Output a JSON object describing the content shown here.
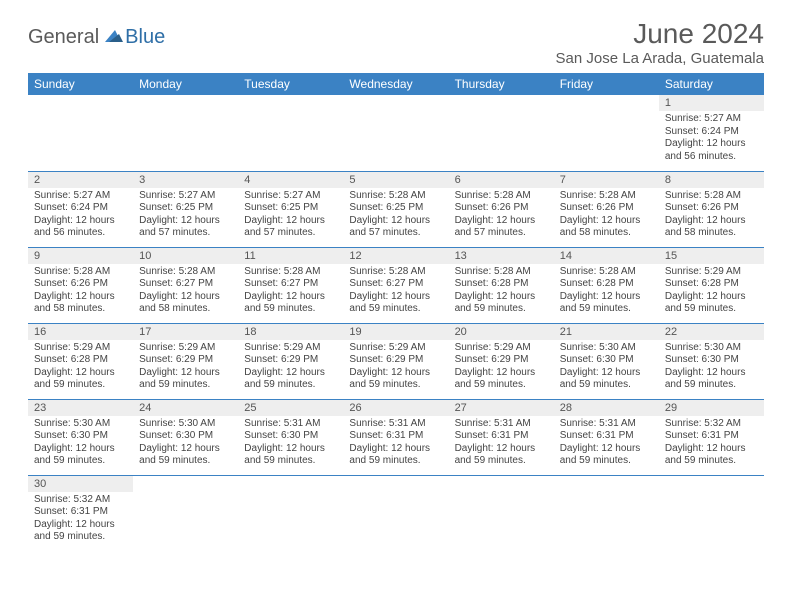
{
  "brand": {
    "part1": "General",
    "part2": "Blue",
    "color_general": "#5a5a5a",
    "color_blue": "#2f6fa7",
    "sail_color": "#3b82c4"
  },
  "title": "June 2024",
  "location": "San Jose La Arada, Guatemala",
  "header_bg": "#3b82c4",
  "header_text_color": "#ffffff",
  "daynum_bg": "#eeeeee",
  "row_border_color": "#3b82c4",
  "weekdays": [
    "Sunday",
    "Monday",
    "Tuesday",
    "Wednesday",
    "Thursday",
    "Friday",
    "Saturday"
  ],
  "cells": [
    [
      null,
      null,
      null,
      null,
      null,
      null,
      {
        "n": "1",
        "sunrise": "Sunrise: 5:27 AM",
        "sunset": "Sunset: 6:24 PM",
        "daylight": "Daylight: 12 hours and 56 minutes."
      }
    ],
    [
      {
        "n": "2",
        "sunrise": "Sunrise: 5:27 AM",
        "sunset": "Sunset: 6:24 PM",
        "daylight": "Daylight: 12 hours and 56 minutes."
      },
      {
        "n": "3",
        "sunrise": "Sunrise: 5:27 AM",
        "sunset": "Sunset: 6:25 PM",
        "daylight": "Daylight: 12 hours and 57 minutes."
      },
      {
        "n": "4",
        "sunrise": "Sunrise: 5:27 AM",
        "sunset": "Sunset: 6:25 PM",
        "daylight": "Daylight: 12 hours and 57 minutes."
      },
      {
        "n": "5",
        "sunrise": "Sunrise: 5:28 AM",
        "sunset": "Sunset: 6:25 PM",
        "daylight": "Daylight: 12 hours and 57 minutes."
      },
      {
        "n": "6",
        "sunrise": "Sunrise: 5:28 AM",
        "sunset": "Sunset: 6:26 PM",
        "daylight": "Daylight: 12 hours and 57 minutes."
      },
      {
        "n": "7",
        "sunrise": "Sunrise: 5:28 AM",
        "sunset": "Sunset: 6:26 PM",
        "daylight": "Daylight: 12 hours and 58 minutes."
      },
      {
        "n": "8",
        "sunrise": "Sunrise: 5:28 AM",
        "sunset": "Sunset: 6:26 PM",
        "daylight": "Daylight: 12 hours and 58 minutes."
      }
    ],
    [
      {
        "n": "9",
        "sunrise": "Sunrise: 5:28 AM",
        "sunset": "Sunset: 6:26 PM",
        "daylight": "Daylight: 12 hours and 58 minutes."
      },
      {
        "n": "10",
        "sunrise": "Sunrise: 5:28 AM",
        "sunset": "Sunset: 6:27 PM",
        "daylight": "Daylight: 12 hours and 58 minutes."
      },
      {
        "n": "11",
        "sunrise": "Sunrise: 5:28 AM",
        "sunset": "Sunset: 6:27 PM",
        "daylight": "Daylight: 12 hours and 59 minutes."
      },
      {
        "n": "12",
        "sunrise": "Sunrise: 5:28 AM",
        "sunset": "Sunset: 6:27 PM",
        "daylight": "Daylight: 12 hours and 59 minutes."
      },
      {
        "n": "13",
        "sunrise": "Sunrise: 5:28 AM",
        "sunset": "Sunset: 6:28 PM",
        "daylight": "Daylight: 12 hours and 59 minutes."
      },
      {
        "n": "14",
        "sunrise": "Sunrise: 5:28 AM",
        "sunset": "Sunset: 6:28 PM",
        "daylight": "Daylight: 12 hours and 59 minutes."
      },
      {
        "n": "15",
        "sunrise": "Sunrise: 5:29 AM",
        "sunset": "Sunset: 6:28 PM",
        "daylight": "Daylight: 12 hours and 59 minutes."
      }
    ],
    [
      {
        "n": "16",
        "sunrise": "Sunrise: 5:29 AM",
        "sunset": "Sunset: 6:28 PM",
        "daylight": "Daylight: 12 hours and 59 minutes."
      },
      {
        "n": "17",
        "sunrise": "Sunrise: 5:29 AM",
        "sunset": "Sunset: 6:29 PM",
        "daylight": "Daylight: 12 hours and 59 minutes."
      },
      {
        "n": "18",
        "sunrise": "Sunrise: 5:29 AM",
        "sunset": "Sunset: 6:29 PM",
        "daylight": "Daylight: 12 hours and 59 minutes."
      },
      {
        "n": "19",
        "sunrise": "Sunrise: 5:29 AM",
        "sunset": "Sunset: 6:29 PM",
        "daylight": "Daylight: 12 hours and 59 minutes."
      },
      {
        "n": "20",
        "sunrise": "Sunrise: 5:29 AM",
        "sunset": "Sunset: 6:29 PM",
        "daylight": "Daylight: 12 hours and 59 minutes."
      },
      {
        "n": "21",
        "sunrise": "Sunrise: 5:30 AM",
        "sunset": "Sunset: 6:30 PM",
        "daylight": "Daylight: 12 hours and 59 minutes."
      },
      {
        "n": "22",
        "sunrise": "Sunrise: 5:30 AM",
        "sunset": "Sunset: 6:30 PM",
        "daylight": "Daylight: 12 hours and 59 minutes."
      }
    ],
    [
      {
        "n": "23",
        "sunrise": "Sunrise: 5:30 AM",
        "sunset": "Sunset: 6:30 PM",
        "daylight": "Daylight: 12 hours and 59 minutes."
      },
      {
        "n": "24",
        "sunrise": "Sunrise: 5:30 AM",
        "sunset": "Sunset: 6:30 PM",
        "daylight": "Daylight: 12 hours and 59 minutes."
      },
      {
        "n": "25",
        "sunrise": "Sunrise: 5:31 AM",
        "sunset": "Sunset: 6:30 PM",
        "daylight": "Daylight: 12 hours and 59 minutes."
      },
      {
        "n": "26",
        "sunrise": "Sunrise: 5:31 AM",
        "sunset": "Sunset: 6:31 PM",
        "daylight": "Daylight: 12 hours and 59 minutes."
      },
      {
        "n": "27",
        "sunrise": "Sunrise: 5:31 AM",
        "sunset": "Sunset: 6:31 PM",
        "daylight": "Daylight: 12 hours and 59 minutes."
      },
      {
        "n": "28",
        "sunrise": "Sunrise: 5:31 AM",
        "sunset": "Sunset: 6:31 PM",
        "daylight": "Daylight: 12 hours and 59 minutes."
      },
      {
        "n": "29",
        "sunrise": "Sunrise: 5:32 AM",
        "sunset": "Sunset: 6:31 PM",
        "daylight": "Daylight: 12 hours and 59 minutes."
      }
    ],
    [
      {
        "n": "30",
        "sunrise": "Sunrise: 5:32 AM",
        "sunset": "Sunset: 6:31 PM",
        "daylight": "Daylight: 12 hours and 59 minutes."
      },
      null,
      null,
      null,
      null,
      null,
      null
    ]
  ]
}
